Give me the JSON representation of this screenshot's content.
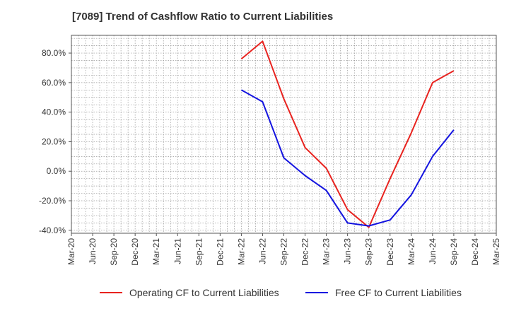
{
  "chart_data": {
    "type": "line",
    "title": "[7089]  Trend of Cashflow Ratio to Current Liabilities",
    "xlabel": "",
    "ylabel": "",
    "x": [
      "Mar-20",
      "Jun-20",
      "Sep-20",
      "Dec-20",
      "Mar-21",
      "Jun-21",
      "Sep-21",
      "Dec-21",
      "Mar-22",
      "Jun-22",
      "Sep-22",
      "Dec-22",
      "Mar-23",
      "Jun-23",
      "Sep-23",
      "Dec-23",
      "Mar-24",
      "Jun-24",
      "Sep-24",
      "Dec-24",
      "Mar-25"
    ],
    "y_ticks": [
      "80.0%",
      "60.0%",
      "40.0%",
      "20.0%",
      "0.0%",
      "-20.0%",
      "-40.0%"
    ],
    "ylim": [
      -42,
      92
    ],
    "grid": true,
    "legend_position": "bottom",
    "series": [
      {
        "name": "Operating CF to Current Liabilities",
        "color": "#e8231f",
        "values": [
          null,
          null,
          null,
          null,
          null,
          null,
          null,
          null,
          76,
          88,
          49,
          16,
          2,
          -26,
          -38,
          -5,
          26,
          60,
          68,
          null,
          null
        ]
      },
      {
        "name": "Free CF to Current Liabilities",
        "color": "#1414e0",
        "values": [
          null,
          null,
          null,
          null,
          null,
          null,
          null,
          null,
          55,
          47,
          9,
          -3,
          -13,
          -35,
          -37,
          -33,
          -16,
          10,
          28,
          null,
          null
        ]
      }
    ]
  }
}
